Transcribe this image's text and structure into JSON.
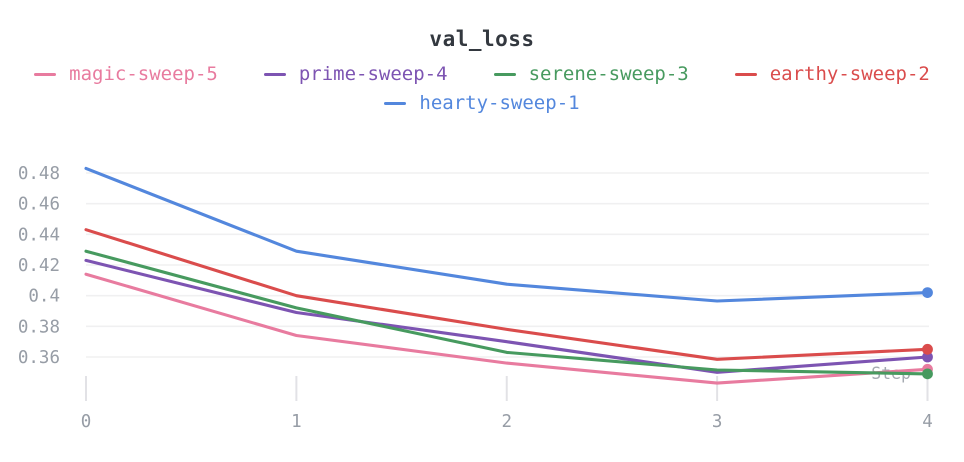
{
  "panel": {
    "title": "val_loss"
  },
  "chart_data": {
    "type": "line",
    "title": "val_loss",
    "xlabel": "Step",
    "ylabel": "",
    "x": [
      0,
      1,
      2,
      3,
      4
    ],
    "xtick_labels": [
      "0",
      "1",
      "2",
      "3",
      "4"
    ],
    "ytick_labels": [
      "0.48",
      "0.46",
      "0.44",
      "0.42",
      "0.4",
      "0.38",
      "0.36"
    ],
    "ylim": [
      0.335,
      0.49
    ],
    "grid": "horizontal",
    "legend_position": "top",
    "axis_label_color": "#979da6",
    "grid_color": "#f0f0f1",
    "tick_color": "#e2e2e6",
    "series": [
      {
        "name": "magic-sweep-5",
        "color": "#E87B9F",
        "values": [
          0.414,
          0.374,
          0.356,
          0.343,
          0.352
        ]
      },
      {
        "name": "prime-sweep-4",
        "color": "#7D54B2",
        "values": [
          0.423,
          0.389,
          0.37,
          0.35,
          0.36
        ]
      },
      {
        "name": "serene-sweep-3",
        "color": "#479A5F",
        "values": [
          0.429,
          0.392,
          0.363,
          0.3515,
          0.349
        ]
      },
      {
        "name": "earthy-sweep-2",
        "color": "#DA4C4C",
        "values": [
          0.443,
          0.4,
          0.378,
          0.3585,
          0.365
        ]
      },
      {
        "name": "hearty-sweep-1",
        "color": "#5387DD",
        "values": [
          0.483,
          0.429,
          0.4075,
          0.3965,
          0.402
        ]
      }
    ]
  }
}
